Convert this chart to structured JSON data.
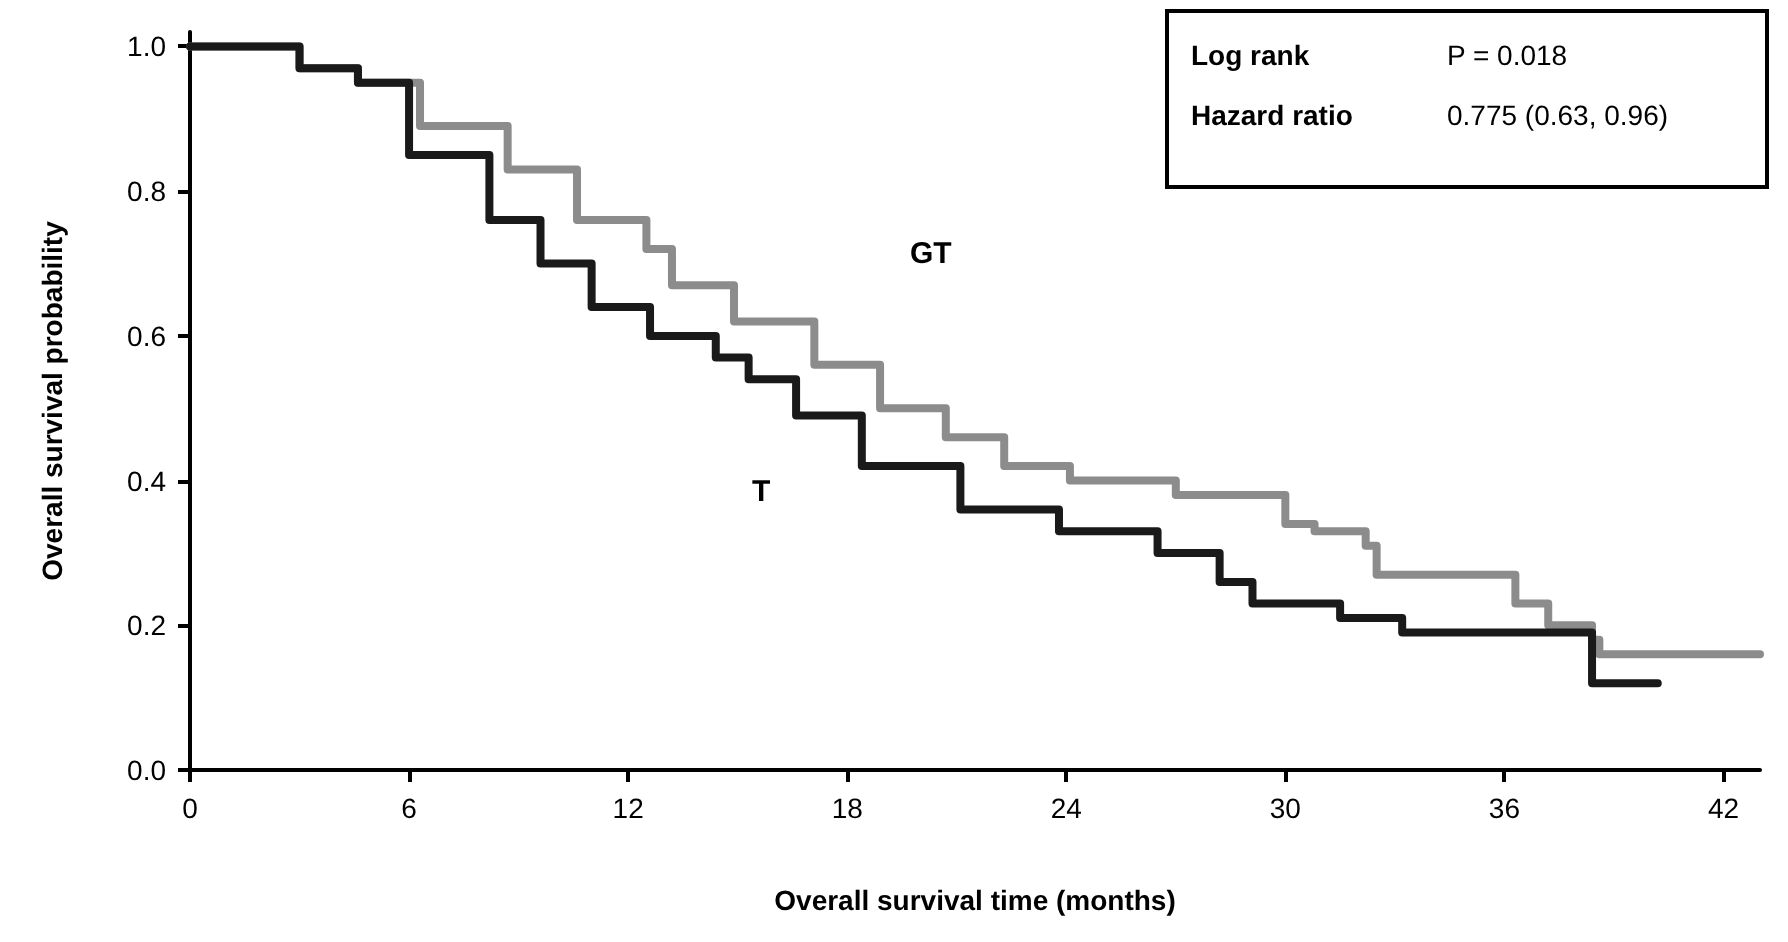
{
  "chart_data": {
    "type": "step",
    "xlabel": "Overall survival time (months)",
    "ylabel": "Overall survival probability",
    "series": [
      {
        "color": "#8c8c8c",
        "x": [
          0,
          1.5,
          3.0,
          4.6,
          6.3,
          8.7,
          10.6,
          12.5,
          13.2,
          14.9,
          17.1,
          18.9,
          20.7,
          22.3,
          24.1,
          26.6,
          27.0,
          29.5,
          30.0,
          30.8,
          32.2,
          32.5,
          35.0,
          36.3,
          37.2,
          38.4,
          38.6,
          43.0
        ],
        "values": [
          1.0,
          1.0,
          0.97,
          0.95,
          0.89,
          0.83,
          0.76,
          0.72,
          0.67,
          0.62,
          0.56,
          0.5,
          0.46,
          0.42,
          0.4,
          0.4,
          0.38,
          0.38,
          0.34,
          0.33,
          0.31,
          0.27,
          0.27,
          0.23,
          0.2,
          0.18,
          0.16,
          0.16
        ]
      },
      {
        "color": "#1a1a1a",
        "x": [
          0,
          1.5,
          3.0,
          4.6,
          6.0,
          8.2,
          9.6,
          11.0,
          12.6,
          14.4,
          15.3,
          16.6,
          18.4,
          21.1,
          23.8,
          26.5,
          28.2,
          29.1,
          31.5,
          33.2,
          38.3,
          38.4,
          40.2
        ],
        "values": [
          1.0,
          1.0,
          0.97,
          0.95,
          0.85,
          0.76,
          0.7,
          0.64,
          0.6,
          0.57,
          0.54,
          0.49,
          0.42,
          0.36,
          0.33,
          0.3,
          0.26,
          0.23,
          0.21,
          0.19,
          0.19,
          0.12,
          0.12
        ]
      }
    ],
    "xlim": [
      0,
      43
    ],
    "xticks": [
      0,
      6,
      12,
      18,
      24,
      30,
      36,
      42
    ],
    "ylim": [
      0,
      1.02
    ],
    "yticks": [
      {
        "value": 0,
        "label": "0.0"
      },
      {
        "value": 0.2,
        "label": "0.2"
      },
      {
        "value": 0.4,
        "label": "0.4"
      },
      {
        "value": 0.6,
        "label": "0.6"
      },
      {
        "value": 0.8,
        "label": "0.8"
      },
      {
        "value": 1,
        "label": "1.0"
      }
    ],
    "annotations": [
      "GT",
      "T",
      "Log rank",
      "P = 0.018",
      "Hazard ratio",
      "0.775 (0.63, 0.96)"
    ],
    "grid": false,
    "line_style": "solid",
    "marker": "none"
  }
}
